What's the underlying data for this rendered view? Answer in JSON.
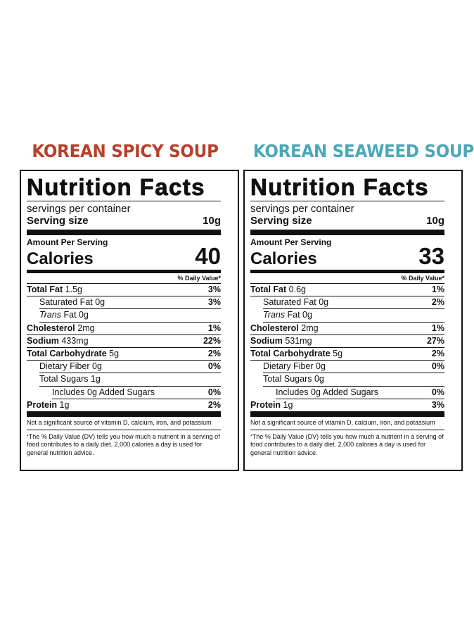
{
  "colors": {
    "spicy_title": "#b8402a",
    "seaweed_title": "#4aa8b8",
    "text": "#111111"
  },
  "labels": [
    {
      "soup_title": "KOREAN SPICY SOUP",
      "nf_title": "Nutrition Facts",
      "servings_per_container": "servings per container",
      "serving_size_label": "Serving size",
      "serving_size_value": "10g",
      "amount_per_serving": "Amount Per Serving",
      "calories_label": "Calories",
      "calories_value": "40",
      "daily_value_header": "% Daily Value*",
      "total_fat": {
        "label": "Total Fat",
        "amount": "1.5g",
        "pct": "3%"
      },
      "saturated_fat": {
        "label": "Saturated Fat 0g",
        "pct": "3%"
      },
      "trans_fat": {
        "label_italic": "Trans",
        "label_rest": " Fat 0g"
      },
      "cholesterol": {
        "label": "Cholesterol",
        "amount": "2mg",
        "pct": "1%"
      },
      "sodium": {
        "label": "Sodium",
        "amount": "433mg",
        "pct": "22%"
      },
      "total_carb": {
        "label": "Total Carbohydrate",
        "amount": "5g",
        "pct": "2%"
      },
      "dietary_fiber": {
        "label": "Dietary Fiber 0g",
        "pct": "0%"
      },
      "total_sugars": {
        "label": "Total Sugars 1g"
      },
      "added_sugars": {
        "label": "Includes 0g Added Sugars",
        "pct": "0%"
      },
      "protein": {
        "label": "Protein",
        "amount": "1g",
        "pct": "2%"
      },
      "note_vitamins": "Not a significant source of vitamin D, calcium, iron, and potassium",
      "note_dv": "The % Daily Value (DV) tells you how much a nutrient in a serving of food contributes to a daily diet. 2,000 calories a day is used for general nutrition advice."
    },
    {
      "soup_title": "KOREAN SEAWEED SOUP",
      "nf_title": "Nutrition Facts",
      "servings_per_container": "servings per container",
      "serving_size_label": "Serving size",
      "serving_size_value": "10g",
      "amount_per_serving": "Amount Per Serving",
      "calories_label": "Calories",
      "calories_value": "33",
      "daily_value_header": "% Daily Value*",
      "total_fat": {
        "label": "Total Fat",
        "amount": "0.6g",
        "pct": "1%"
      },
      "saturated_fat": {
        "label": "Saturated Fat 0g",
        "pct": "2%"
      },
      "trans_fat": {
        "label_italic": "Trans",
        "label_rest": " Fat 0g"
      },
      "cholesterol": {
        "label": "Cholesterol",
        "amount": "2mg",
        "pct": "1%"
      },
      "sodium": {
        "label": "Sodium",
        "amount": "531mg",
        "pct": "27%"
      },
      "total_carb": {
        "label": "Total Carbohydrate",
        "amount": "5g",
        "pct": "2%"
      },
      "dietary_fiber": {
        "label": "Dietary Fiber 0g",
        "pct": "0%"
      },
      "total_sugars": {
        "label": "Total Sugars 0g"
      },
      "added_sugars": {
        "label": "Includes 0g Added Sugars",
        "pct": "0%"
      },
      "protein": {
        "label": "Protein",
        "amount": "1g",
        "pct": "3%"
      },
      "note_vitamins": "Not a significant source of vitamin D, calcium, iron, and potassium",
      "note_dv": "The % Daily Value (DV) tells you how much a nutrient in a serving of food contributes to a daily diet. 2,000 calories a day is used for general nutrition advice."
    }
  ]
}
